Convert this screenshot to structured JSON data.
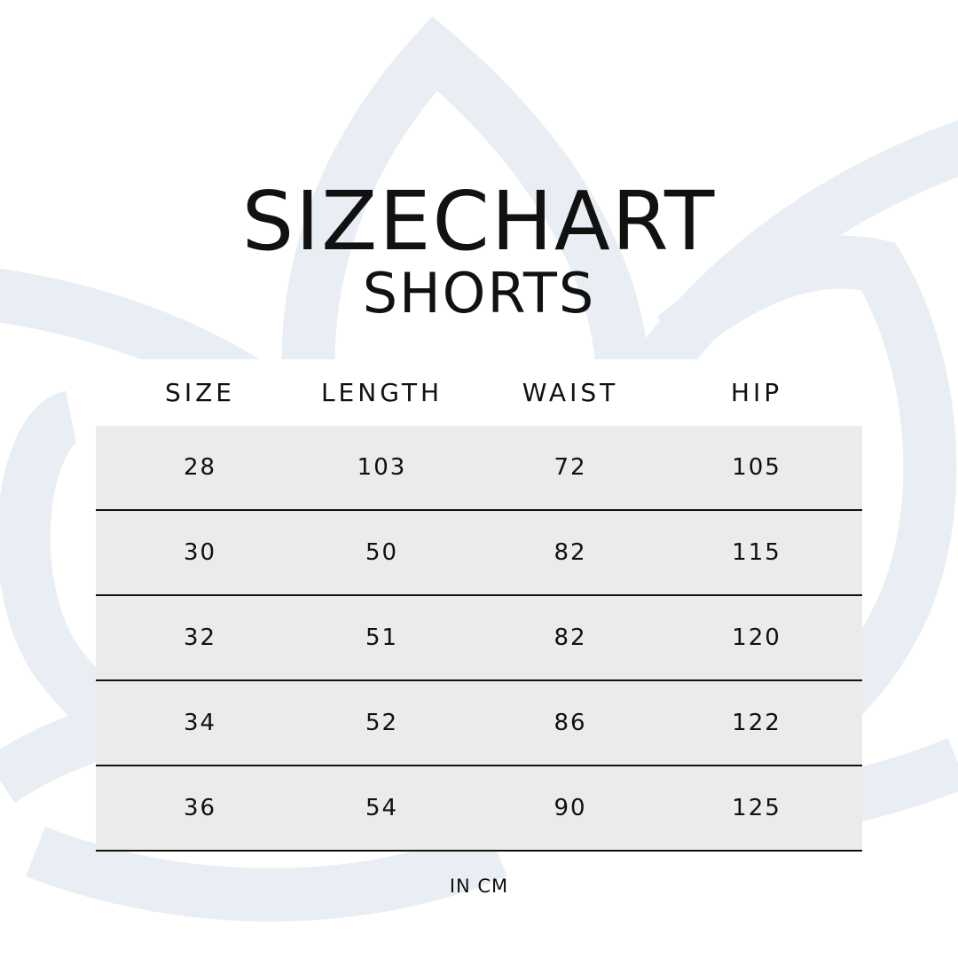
{
  "title": "SIZECHART",
  "subtitle": "SHORTS",
  "watermark_color": "#e8eef3",
  "table": {
    "headers": [
      "SIZE",
      "LENGTH",
      "WAIST",
      "HIP"
    ],
    "rows": [
      [
        "28",
        "103",
        "72",
        "105"
      ],
      [
        "30",
        "50",
        "82",
        "115"
      ],
      [
        "32",
        "51",
        "82",
        "120"
      ],
      [
        "34",
        "52",
        "86",
        "122"
      ],
      [
        "36",
        "54",
        "90",
        "125"
      ]
    ]
  },
  "unit_note": "IN CM"
}
